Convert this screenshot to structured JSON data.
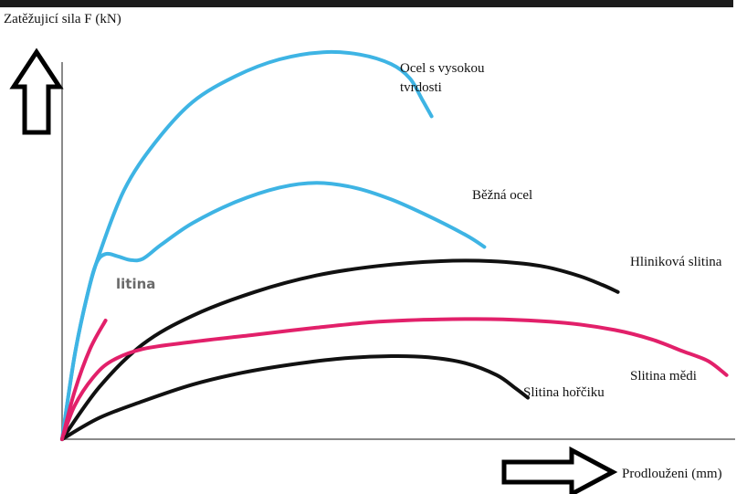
{
  "chart_data": {
    "type": "line",
    "ylabel": "Zatěžujicí sila F (kN)",
    "xlabel": "Prodlouženi (mm)",
    "grid": false,
    "series": [
      {
        "name": "Ocel s vysokou tvrdosti",
        "name_lines": [
          "Ocel s vysokou",
          "tvrdosti"
        ],
        "color": "#3eb4e4",
        "points": [
          [
            0,
            0
          ],
          [
            2,
            35
          ],
          [
            4,
            60
          ],
          [
            6,
            78
          ],
          [
            10,
            105
          ],
          [
            15,
            125
          ],
          [
            21,
            142
          ],
          [
            28,
            153
          ],
          [
            35,
            160
          ],
          [
            42,
            163
          ],
          [
            48,
            162
          ],
          [
            53,
            158
          ],
          [
            56,
            152
          ],
          [
            58,
            143
          ],
          [
            59.5,
            136
          ]
        ]
      },
      {
        "name": "Běžná ocel",
        "name_lines": [
          "Běžná ocel"
        ],
        "color": "#3eb4e4",
        "points": [
          [
            0,
            0
          ],
          [
            2,
            35
          ],
          [
            4,
            60
          ],
          [
            5.5,
            74
          ],
          [
            7,
            78
          ],
          [
            9,
            77
          ],
          [
            11,
            75.5
          ],
          [
            13,
            76
          ],
          [
            16,
            82
          ],
          [
            21,
            91
          ],
          [
            28,
            100
          ],
          [
            35,
            106
          ],
          [
            41,
            108
          ],
          [
            47,
            106
          ],
          [
            53,
            101
          ],
          [
            59,
            94
          ],
          [
            65,
            86
          ],
          [
            68,
            81
          ]
        ]
      },
      {
        "name": "Hliniková slitina",
        "name_lines": [
          "Hliniková slitina"
        ],
        "color": "#111111",
        "points": [
          [
            0,
            0
          ],
          [
            6,
            22
          ],
          [
            13,
            40
          ],
          [
            21,
            52
          ],
          [
            31,
            62
          ],
          [
            41,
            69
          ],
          [
            51,
            73
          ],
          [
            61,
            75
          ],
          [
            69,
            75
          ],
          [
            77,
            73
          ],
          [
            83,
            69
          ],
          [
            87,
            65
          ],
          [
            89.5,
            62
          ]
        ]
      },
      {
        "name": "Slitina mědi",
        "name_lines": [
          "Slitina mědi"
        ],
        "color": "#e2206a",
        "points": [
          [
            0,
            0
          ],
          [
            2,
            14
          ],
          [
            5,
            26
          ],
          [
            8,
            33
          ],
          [
            13,
            38
          ],
          [
            21,
            41
          ],
          [
            31,
            44
          ],
          [
            41,
            47
          ],
          [
            51,
            49.5
          ],
          [
            61,
            50.5
          ],
          [
            71,
            50.5
          ],
          [
            81,
            49
          ],
          [
            89,
            46
          ],
          [
            95,
            42
          ],
          [
            100,
            37
          ],
          [
            104,
            33
          ],
          [
            107,
            27
          ]
        ]
      },
      {
        "name": "Slitina hořčiku",
        "name_lines": [
          "Slitina hořčiku"
        ],
        "color": "#111111",
        "points": [
          [
            0,
            0
          ],
          [
            6,
            9
          ],
          [
            13,
            16
          ],
          [
            21,
            23
          ],
          [
            29,
            28
          ],
          [
            37,
            31.5
          ],
          [
            45,
            34
          ],
          [
            53,
            35
          ],
          [
            59,
            34.5
          ],
          [
            65,
            32
          ],
          [
            70,
            27
          ],
          [
            73,
            21.5
          ],
          [
            75,
            17.5
          ]
        ]
      },
      {
        "name": "litina",
        "name_lines": [
          "litina"
        ],
        "color": "#e2206a",
        "points": [
          [
            0,
            0
          ],
          [
            2,
            20
          ],
          [
            4.5,
            38
          ],
          [
            7,
            50
          ]
        ]
      }
    ]
  }
}
